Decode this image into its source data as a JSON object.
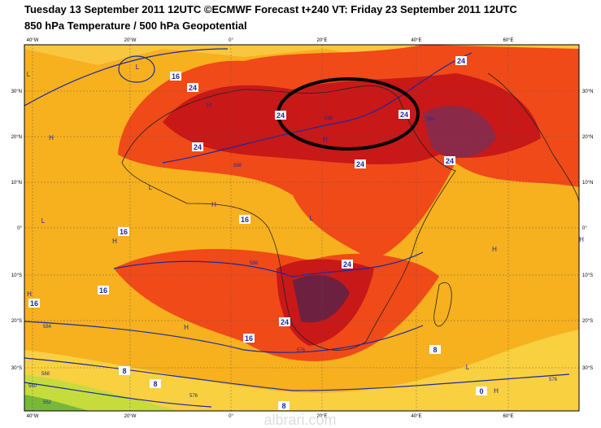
{
  "header": {
    "line1": "Tuesday 13 September 2011 12UTC ©ECMWF Forecast t+240 VT: Friday 23 September 2011 12UTC",
    "line2": "850 hPa Temperature / 500 hPa Geopotential"
  },
  "map": {
    "lon_labels": [
      "40°W",
      "20°W",
      "0°",
      "20°E",
      "40°E",
      "60°E"
    ],
    "lat_labels": [
      "30°N",
      "20°N",
      "10°N",
      "0°",
      "10°S",
      "20°S",
      "30°S"
    ],
    "isotherm_labels": [
      "24",
      "16",
      "24",
      "24",
      "24",
      "24",
      "24",
      "24",
      "16",
      "16",
      "16",
      "16",
      "24",
      "24",
      "16",
      "8",
      "8",
      "8",
      "8",
      "0"
    ],
    "geopotential_labels": [
      "588",
      "588",
      "588",
      "584",
      "576",
      "568",
      "560",
      "552",
      "576",
      "584",
      "576"
    ],
    "pressure_centres": [
      "L",
      "H",
      "H",
      "H",
      "L",
      "L",
      "H",
      "L",
      "H",
      "H",
      "H",
      "L",
      "H",
      "L",
      "H",
      "H"
    ]
  },
  "watermark": "albrari.com"
}
